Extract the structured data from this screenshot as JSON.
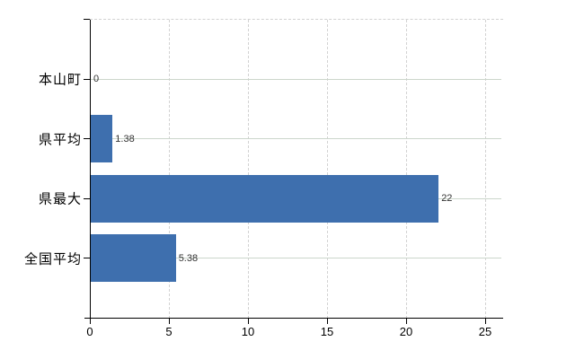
{
  "chart_data": {
    "type": "bar",
    "orientation": "horizontal",
    "title": "",
    "xlabel": "",
    "ylabel": "",
    "categories": [
      "本山町",
      "県平均",
      "県最大",
      "全国平均"
    ],
    "values": [
      0,
      1.38,
      22,
      5.38
    ],
    "value_labels": [
      "0",
      "1.38",
      "22",
      "5.38"
    ],
    "x_ticks": [
      0,
      5,
      10,
      15,
      20,
      25
    ],
    "x_tick_labels": [
      "0",
      "5",
      "10",
      "15",
      "20",
      "25"
    ],
    "xlim": [
      0,
      26.1
    ],
    "legend": "none",
    "grid": "dashed vertical gridlines at x ticks; solid light horizontal gridlines at category centers; dashed top plot border",
    "colors": {
      "bar": "#3e6fae",
      "axis": "#000000",
      "grid_vertical": "#d2d2d2",
      "grid_horizontal": "#ccd6cb",
      "value_label": "#333333",
      "tick_label": "#000000",
      "background": "#ffffff"
    }
  }
}
